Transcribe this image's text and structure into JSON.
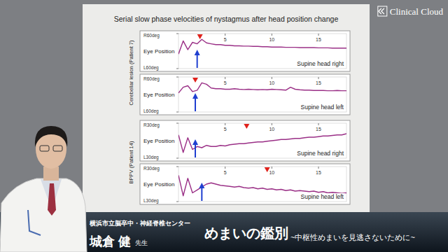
{
  "slide_title": "Serial slow phase velocities of nystagmus after head position change",
  "logo": "Clinical Cloud",
  "groups": [
    {
      "label": "Cerebellar lesion (Patient 7)",
      "charts": [
        0,
        1
      ]
    },
    {
      "label": "BPPV (Patient 14)",
      "charts": [
        2,
        3
      ]
    }
  ],
  "caption": {
    "institution": "横浜市立脳卒中・神経脊椎センター",
    "name": "城倉 健",
    "honorific": "先生",
    "title": "めまいの鑑別",
    "subtitle": "~中枢性めまいを見逃さないために~"
  },
  "chart_data": [
    {
      "type": "line",
      "title": "Supine head right",
      "y_label": "Eye Position",
      "color": "#9a2f86",
      "x": [
        0,
        0.5,
        1,
        1.5,
        2,
        2.5,
        3,
        3.5,
        4,
        4.5,
        5,
        5.5,
        6,
        6.5,
        7,
        7.5,
        8,
        8.5,
        9,
        9.5,
        10,
        10.5,
        11,
        11.5,
        12,
        12.5,
        13,
        13.5,
        14,
        14.5,
        15,
        15.5,
        16,
        16.5,
        17,
        17.5,
        18
      ],
      "values": [
        -10,
        35,
        5,
        30,
        25,
        40,
        28,
        25,
        22,
        22,
        20,
        20,
        18,
        18,
        17,
        17,
        16,
        16,
        15,
        15,
        14,
        14,
        14,
        13,
        13,
        13,
        12,
        12,
        12,
        12,
        11,
        11,
        11,
        10,
        10,
        10,
        10
      ],
      "xlim": [
        0,
        18
      ],
      "xticks": [
        5,
        10,
        15
      ],
      "ylim": [
        -60,
        60
      ],
      "yticks": [
        {
          "value": 60,
          "label": "R60deg"
        },
        {
          "value": -60,
          "label": "L60deg"
        }
      ],
      "triangle_x": 2.3,
      "arrow_x": 2.0
    },
    {
      "type": "line",
      "title": "Supine head left",
      "y_label": "Eye Position",
      "color": "#9a2f86",
      "x": [
        0,
        0.5,
        1,
        1.5,
        2,
        2.5,
        3,
        3.5,
        4,
        4.5,
        5,
        5.5,
        6,
        6.5,
        7,
        7.5,
        8,
        8.5,
        9,
        9.5,
        10,
        10.5,
        11,
        11.5,
        12,
        12.5,
        13,
        13.5,
        14,
        14.5,
        15,
        15.5,
        16,
        16.5,
        17,
        17.5,
        18
      ],
      "values": [
        5,
        25,
        30,
        10,
        15,
        40,
        35,
        22,
        20,
        20,
        18,
        18,
        20,
        18,
        17,
        18,
        17,
        16,
        17,
        16,
        18,
        17,
        16,
        15,
        25,
        18,
        16,
        15,
        15,
        14,
        14,
        14,
        13,
        13,
        14,
        13,
        13
      ],
      "xlim": [
        0,
        18
      ],
      "xticks": [
        5,
        10,
        15
      ],
      "ylim": [
        -60,
        60
      ],
      "yticks": [
        {
          "value": 60,
          "label": "R60deg"
        },
        {
          "value": -60,
          "label": "L60deg"
        }
      ],
      "triangle_x": 1.8,
      "arrow_x": 1.8
    },
    {
      "type": "line",
      "title": "Supine head right",
      "y_label": "Eye Position",
      "color": "#9a2f86",
      "x": [
        0,
        0.5,
        1,
        1.5,
        2,
        2.5,
        3,
        3.5,
        4,
        4.5,
        5,
        5.5,
        6,
        6.5,
        7,
        7.5,
        8,
        8.5,
        9,
        9.5,
        10,
        10.5,
        11,
        11.5,
        12,
        12.5,
        13,
        13.5,
        14,
        14.5,
        15,
        15.5,
        16,
        16.5,
        17,
        17.5,
        18
      ],
      "values": [
        10,
        -20,
        5,
        -15,
        -10,
        -12,
        -8,
        -10,
        -10,
        -8,
        -9,
        -7,
        -6,
        -5,
        -5,
        -4,
        -3,
        -2,
        -2,
        -1,
        0,
        1,
        2,
        2,
        3,
        4,
        4,
        5,
        6,
        6,
        7,
        8,
        8,
        9,
        10,
        10,
        12
      ],
      "xlim": [
        0,
        18
      ],
      "xticks": [
        5,
        10,
        15
      ],
      "ylim": [
        -30,
        30
      ],
      "yticks": [
        {
          "value": 30,
          "label": "R30deg"
        },
        {
          "value": -30,
          "label": "L30deg"
        }
      ],
      "triangle_x": 7.3,
      "arrow_x": 1.8
    },
    {
      "type": "line",
      "title": "Supine head left",
      "y_label": "Eye Position",
      "color": "#9a2f86",
      "x": [
        0,
        0.5,
        1,
        1.5,
        2,
        2.5,
        3,
        3.5,
        4,
        4.5,
        5,
        5.5,
        6,
        6.5,
        7,
        7.5,
        8,
        8.5,
        9,
        9.5,
        10,
        10.5,
        11,
        11.5,
        12,
        12.5,
        13,
        13.5,
        14,
        14.5,
        15,
        15.5,
        16,
        16.5,
        17,
        17.5,
        18
      ],
      "values": [
        15,
        -20,
        10,
        -15,
        -10,
        -5,
        0,
        2,
        0,
        -2,
        -3,
        -4,
        -5,
        -4,
        -6,
        -7,
        -6,
        -8,
        -7,
        -9,
        -8,
        -10,
        -9,
        -11,
        -10,
        -12,
        -11,
        -12,
        -13,
        -12,
        -14,
        -13,
        -15,
        -14,
        -15,
        -16,
        -15
      ],
      "xlim": [
        0,
        18
      ],
      "xticks": [
        5,
        10,
        15
      ],
      "ylim": [
        -30,
        30
      ],
      "yticks": [
        {
          "value": 30,
          "label": "R30deg"
        },
        {
          "value": -30,
          "label": "L30deg"
        }
      ],
      "triangle_x": 9.5,
      "arrow_x": 2.5
    }
  ]
}
